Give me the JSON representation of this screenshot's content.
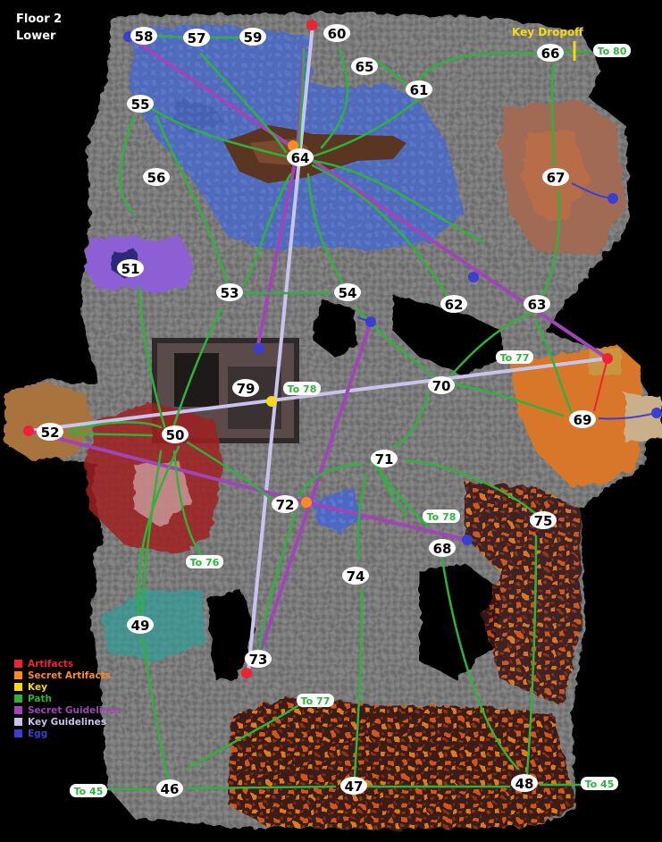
{
  "header": {
    "floor": "Floor 2",
    "section": "Lower"
  },
  "colors": {
    "artifact": "#ee2233",
    "secret_artifact": "#ff8a22",
    "key": "#f5d816",
    "path": "#2db33a",
    "secret_guideline": "#a045b8",
    "key_guideline": "#c8c4ee",
    "egg": "#3a3fd0",
    "water": "#4d68c2",
    "lava": "#d2561a",
    "stone": "#787878"
  },
  "legend": [
    {
      "label": "Artifacts",
      "kind": "artifact"
    },
    {
      "label": "Secret Artifacts",
      "kind": "secret_artifact"
    },
    {
      "label": "Key",
      "kind": "key"
    },
    {
      "label": "Path",
      "kind": "path"
    },
    {
      "label": "Secret Guidelines",
      "kind": "secret_guideline"
    },
    {
      "label": "Key Guidelines",
      "kind": "key_guideline"
    },
    {
      "label": "Egg",
      "kind": "egg"
    }
  ],
  "key_dropoff_label": "Key Dropoff",
  "rooms": [
    "46",
    "47",
    "48",
    "49",
    "50",
    "51",
    "52",
    "53",
    "54",
    "55",
    "56",
    "57",
    "58",
    "59",
    "60",
    "61",
    "62",
    "63",
    "64",
    "65",
    "66",
    "67",
    "68",
    "69",
    "70",
    "71",
    "72",
    "73",
    "74",
    "75",
    "79"
  ],
  "exits": [
    "To 80",
    "To 77",
    "To 78",
    "To 78",
    "To 76",
    "To 77",
    "To 45",
    "To 45"
  ]
}
